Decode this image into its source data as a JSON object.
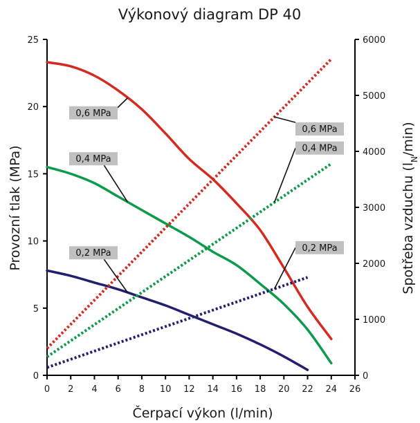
{
  "chart_data": {
    "type": "line",
    "title": "Výkonový diagram DP 40",
    "xlabel": "Čerpací výkon (l/min)",
    "ylabel_left": "Provozní tlak (MPa)",
    "ylabel_right_parts": [
      "Spotřeba vzduchu (l",
      "N",
      "/min)"
    ],
    "xlim": [
      0,
      26
    ],
    "ylim_left": [
      0,
      25
    ],
    "ylim_right": [
      0,
      6000
    ],
    "x_ticks": [
      0,
      2,
      4,
      6,
      8,
      10,
      12,
      14,
      16,
      18,
      20,
      22,
      24,
      26
    ],
    "y_left_ticks": [
      0,
      5,
      10,
      15,
      20,
      25
    ],
    "y_right_ticks": [
      0,
      1000,
      2000,
      3000,
      4000,
      5000,
      6000
    ],
    "grid": false,
    "series": [
      {
        "name": "0,6 MPa",
        "color": "#d42a1f",
        "axis": "left",
        "style": "solid",
        "points": [
          [
            0,
            23.3
          ],
          [
            2,
            23.0
          ],
          [
            4,
            22.3
          ],
          [
            6,
            21.2
          ],
          [
            8,
            19.8
          ],
          [
            10,
            18.0
          ],
          [
            12,
            16.1
          ],
          [
            14,
            14.6
          ],
          [
            16,
            12.8
          ],
          [
            18,
            10.8
          ],
          [
            20,
            8.0
          ],
          [
            22,
            5.1
          ],
          [
            24,
            2.7
          ]
        ]
      },
      {
        "name": "0,4 MPa",
        "color": "#0d9a4a",
        "axis": "left",
        "style": "solid",
        "points": [
          [
            0,
            15.5
          ],
          [
            2,
            15.0
          ],
          [
            4,
            14.3
          ],
          [
            6,
            13.3
          ],
          [
            8,
            12.3
          ],
          [
            10,
            11.3
          ],
          [
            12,
            10.3
          ],
          [
            14,
            9.2
          ],
          [
            16,
            8.2
          ],
          [
            18,
            6.8
          ],
          [
            20,
            5.3
          ],
          [
            22,
            3.4
          ],
          [
            24,
            0.9
          ]
        ]
      },
      {
        "name": "0,2 MPa",
        "color": "#231f6f",
        "axis": "left",
        "style": "solid",
        "points": [
          [
            0,
            7.8
          ],
          [
            2,
            7.4
          ],
          [
            4,
            6.9
          ],
          [
            6,
            6.4
          ],
          [
            8,
            5.8
          ],
          [
            10,
            5.2
          ],
          [
            12,
            4.5
          ],
          [
            14,
            3.8
          ],
          [
            16,
            3.1
          ],
          [
            18,
            2.3
          ],
          [
            20,
            1.4
          ],
          [
            22,
            0.4
          ]
        ]
      },
      {
        "name": "0,6 MPa",
        "color": "#d42a1f",
        "axis": "right",
        "style": "dotted",
        "points": [
          [
            0,
            480
          ],
          [
            24,
            5650
          ]
        ]
      },
      {
        "name": "0,4 MPa",
        "color": "#0d9a4a",
        "axis": "right",
        "style": "dotted",
        "points": [
          [
            0,
            330
          ],
          [
            24,
            3780
          ]
        ]
      },
      {
        "name": "0,2 MPa",
        "color": "#231f6f",
        "axis": "right",
        "style": "dotted",
        "points": [
          [
            0,
            140
          ],
          [
            22,
            1750
          ]
        ]
      }
    ],
    "callouts": [
      {
        "text": "0,6 MPa",
        "points_to": "series.0",
        "at_x": 6.8
      },
      {
        "text": "0,4 MPa",
        "points_to": "series.1",
        "at_x": 6.8
      },
      {
        "text": "0,2 MPa",
        "points_to": "series.2",
        "at_x": 6.8
      },
      {
        "text": "0,6 MPa",
        "points_to": "series.3",
        "at_x": 19.2
      },
      {
        "text": "0,4 MPa",
        "points_to": "series.4",
        "at_x": 19.2
      },
      {
        "text": "0,2 MPa",
        "points_to": "series.5",
        "at_x": 19.2
      }
    ],
    "callout_fill": "#c0c0c0"
  }
}
